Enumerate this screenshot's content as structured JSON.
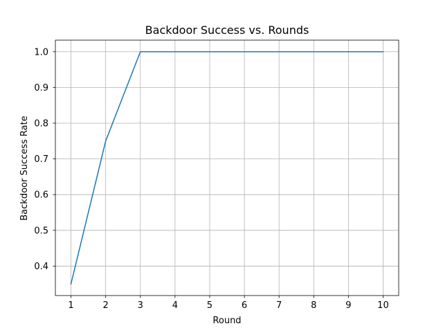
{
  "chart_data": {
    "type": "line",
    "title": "Backdoor Success vs. Rounds",
    "xlabel": "Round",
    "ylabel": "Backdoor Success Rate",
    "x": [
      1,
      2,
      3,
      4,
      5,
      6,
      7,
      8,
      9,
      10
    ],
    "series": [
      {
        "values": [
          0.35,
          0.75,
          1.0,
          1.0,
          1.0,
          1.0,
          1.0,
          1.0,
          1.0,
          1.0
        ],
        "color": "#1f77b4"
      }
    ],
    "xlim": [
      0.55,
      10.45
    ],
    "ylim": [
      0.3175,
      1.0325
    ],
    "xticks": [
      1,
      2,
      3,
      4,
      5,
      6,
      7,
      8,
      9,
      10
    ],
    "xtick_labels": [
      "1",
      "2",
      "3",
      "4",
      "5",
      "6",
      "7",
      "8",
      "9",
      "10"
    ],
    "yticks": [
      0.4,
      0.5,
      0.6,
      0.7,
      0.8,
      0.9,
      1.0
    ],
    "ytick_labels": [
      "0.4",
      "0.5",
      "0.6",
      "0.7",
      "0.8",
      "0.9",
      "1.0"
    ],
    "grid": true,
    "grid_color": "#b0b0b0",
    "axis_color": "#000000"
  }
}
